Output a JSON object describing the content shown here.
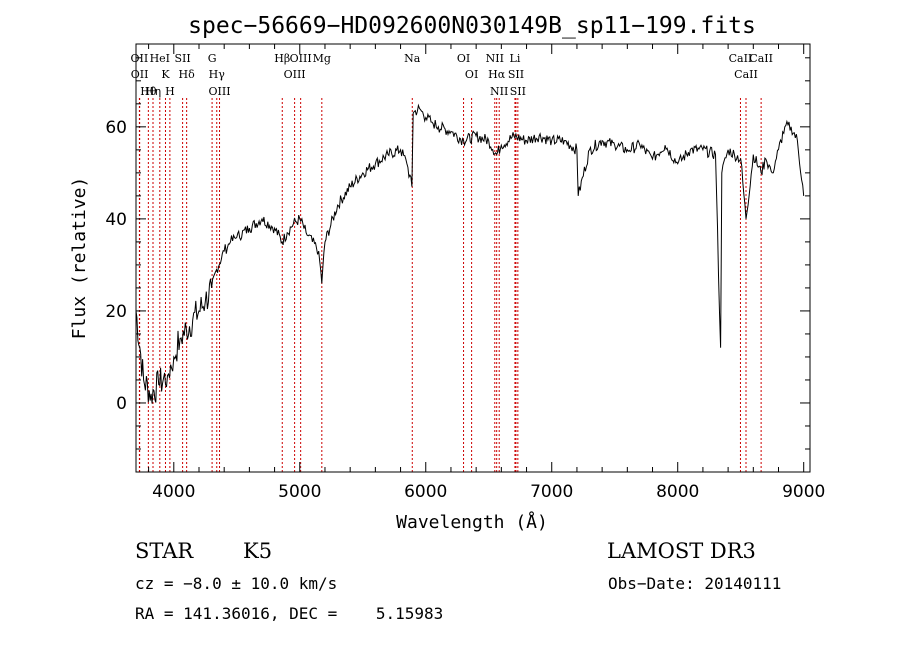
{
  "chart_data": {
    "type": "line",
    "title": "spec−56669−HD092600N030149B_sp11−199.fits",
    "xlabel": "Wavelength (Å)",
    "ylabel": "Flux (relative)",
    "xlim": [
      3700,
      9050
    ],
    "ylim": [
      -15,
      78
    ],
    "x_ticks": [
      "4000",
      "5000",
      "6000",
      "7000",
      "8000",
      "9000"
    ],
    "y_ticks": [
      "0",
      "20",
      "40",
      "60"
    ],
    "x_tick_values": [
      4000,
      5000,
      6000,
      7000,
      8000,
      9000
    ],
    "y_tick_values": [
      0,
      20,
      40,
      60
    ],
    "grid": false,
    "series": [
      {
        "x": [
          3700,
          3760,
          3820,
          3880,
          3950,
          4000,
          4050,
          4100,
          4150,
          4200,
          4250,
          4300,
          4340,
          4400,
          4450,
          4500,
          4600,
          4700,
          4800,
          4860,
          4900,
          4950,
          5000,
          5050,
          5100,
          5150,
          5175,
          5200,
          5300,
          5400,
          5500,
          5600,
          5700,
          5800,
          5850,
          5890,
          5900,
          5950,
          6000,
          6050,
          6100,
          6200,
          6300,
          6400,
          6500,
          6563,
          6600,
          6700,
          6800,
          6900,
          7000,
          7100,
          7200,
          7210,
          7300,
          7400,
          7500,
          7600,
          7700,
          7800,
          7900,
          8000,
          8100,
          8200,
          8300,
          8340,
          8350,
          8400,
          8450,
          8500,
          8542,
          8600,
          8662,
          8700,
          8750,
          8800,
          8850,
          8900,
          8950,
          9000
        ],
        "values": [
          20,
          5,
          2,
          4,
          6,
          10,
          14,
          16,
          18,
          20,
          22,
          25,
          29,
          33,
          35,
          36,
          38,
          40,
          38,
          35,
          37,
          39,
          40,
          37,
          35,
          33,
          26,
          35,
          43,
          47,
          50,
          52,
          54,
          55,
          52,
          47,
          63,
          64,
          62,
          61,
          60,
          59,
          57,
          58,
          57,
          54,
          56,
          58,
          57,
          58,
          57,
          57,
          55,
          45,
          55,
          57,
          56,
          55,
          56,
          53,
          56,
          52,
          55,
          55,
          54,
          12,
          50,
          55,
          54,
          53,
          40,
          54,
          50,
          53,
          50,
          55,
          60,
          60,
          57,
          45
        ]
      }
    ],
    "lines": [
      {
        "label": "Hθ",
        "x": 3798
      },
      {
        "label": "OII",
        "x": 3727
      },
      {
        "label": "OII",
        "x": 3729
      },
      {
        "label": "K",
        "x": 3934
      },
      {
        "label": "Hη",
        "x": 3835
      },
      {
        "label": "HeI",
        "x": 3889
      },
      {
        "label": "H",
        "x": 3969
      },
      {
        "label": "SII",
        "x": 4070
      },
      {
        "label": "Hδ",
        "x": 4102
      },
      {
        "label": "OIII",
        "x": 4363
      },
      {
        "label": "Hγ",
        "x": 4341
      },
      {
        "label": "G",
        "x": 4304
      },
      {
        "label": "Hβ",
        "x": 4861
      },
      {
        "label": "OIII",
        "x": 4959
      },
      {
        "label": "OIII",
        "x": 5007
      },
      {
        "label": "Mg",
        "x": 5175
      },
      {
        "label": "Na",
        "x": 5893
      },
      {
        "label": "OI",
        "x": 6300
      },
      {
        "label": "OI",
        "x": 6364
      },
      {
        "label": "Hα",
        "x": 6563
      },
      {
        "label": "NII",
        "x": 6548
      },
      {
        "label": "NII",
        "x": 6583
      },
      {
        "label": "SII",
        "x": 6716
      },
      {
        "label": "SII",
        "x": 6731
      },
      {
        "label": "Li",
        "x": 6708
      },
      {
        "label": "CaII",
        "x": 8498
      },
      {
        "label": "CaII",
        "x": 8542
      },
      {
        "label": "CaII",
        "x": 8662
      }
    ]
  },
  "info": {
    "object_type": "STAR",
    "subclass": "K5",
    "survey": "LAMOST DR3",
    "cz": "cz = −8.0 ± 10.0 km/s",
    "obs_date": "Obs−Date: 20140111",
    "radec": "RA = 141.36016, DEC =    5.15983"
  },
  "colors": {
    "line": "#000000",
    "marker": "#cc0000",
    "axis": "#000000"
  }
}
